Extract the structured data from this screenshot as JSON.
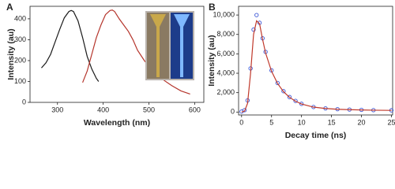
{
  "chart_data": [
    {
      "type": "line",
      "panel": "A",
      "xlabel": "Wavelength (nm)",
      "ylabel": "Intensity (au)",
      "xlim": [
        240,
        620
      ],
      "xticks": [
        300,
        400,
        500,
        600
      ],
      "ylim": [
        0,
        460
      ],
      "yticks": [
        0,
        100,
        200,
        300,
        400
      ],
      "series": [
        {
          "color": "#1a1a1a",
          "style": "line",
          "x": [
            265,
            275,
            285,
            295,
            305,
            315,
            325,
            330,
            335,
            345,
            355,
            365,
            375,
            385,
            390
          ],
          "values": [
            165,
            190,
            230,
            290,
            350,
            405,
            435,
            440,
            435,
            390,
            310,
            220,
            160,
            115,
            100
          ]
        },
        {
          "color": "#b5352c",
          "style": "line",
          "x": [
            355,
            365,
            375,
            385,
            395,
            405,
            415,
            420,
            425,
            435,
            445,
            455,
            465,
            475,
            490,
            510,
            530,
            550,
            570,
            590
          ],
          "values": [
            95,
            150,
            230,
            310,
            370,
            420,
            440,
            442,
            435,
            400,
            370,
            340,
            300,
            250,
            200,
            150,
            110,
            80,
            55,
            40
          ]
        }
      ]
    },
    {
      "type": "line",
      "panel": "B",
      "xlabel": "Decay time (ns)",
      "ylabel": "Intensity (au)",
      "xlim": [
        -0.5,
        25.2
      ],
      "xticks": [
        0,
        5,
        10,
        15,
        20,
        25
      ],
      "ylim": [
        -300,
        10900
      ],
      "yticks": [
        0,
        {
          "value": 2000,
          "label": "2,000"
        },
        {
          "value": 4000,
          "label": "4,000"
        },
        {
          "value": 6000,
          "label": "6,000"
        },
        {
          "value": 8000,
          "label": "8,000"
        },
        {
          "value": 10000,
          "label": "10,000"
        }
      ],
      "series": [
        {
          "color": "#3b55d6",
          "style": "markers",
          "x": [
            0,
            0.5,
            1,
            1.5,
            2,
            2.5,
            3,
            3.5,
            4,
            5,
            6,
            7,
            8,
            9,
            10,
            12,
            14,
            16,
            18,
            20,
            22,
            25
          ],
          "values": [
            50,
            200,
            1200,
            4500,
            8500,
            10000,
            9200,
            7600,
            6200,
            4300,
            3000,
            2150,
            1550,
            1150,
            850,
            520,
            380,
            300,
            260,
            230,
            200,
            180
          ]
        },
        {
          "color": "#c0392b",
          "style": "line",
          "x": [
            0,
            0.5,
            1,
            1.5,
            2,
            2.5,
            3,
            3.5,
            4,
            5,
            6,
            7,
            8,
            9,
            10,
            12,
            14,
            16,
            18,
            20,
            22,
            25
          ],
          "values": [
            0,
            100,
            900,
            4000,
            8000,
            9400,
            9100,
            7500,
            6100,
            4200,
            2950,
            2100,
            1520,
            1120,
            830,
            510,
            370,
            290,
            250,
            220,
            190,
            170
          ]
        }
      ]
    }
  ]
}
